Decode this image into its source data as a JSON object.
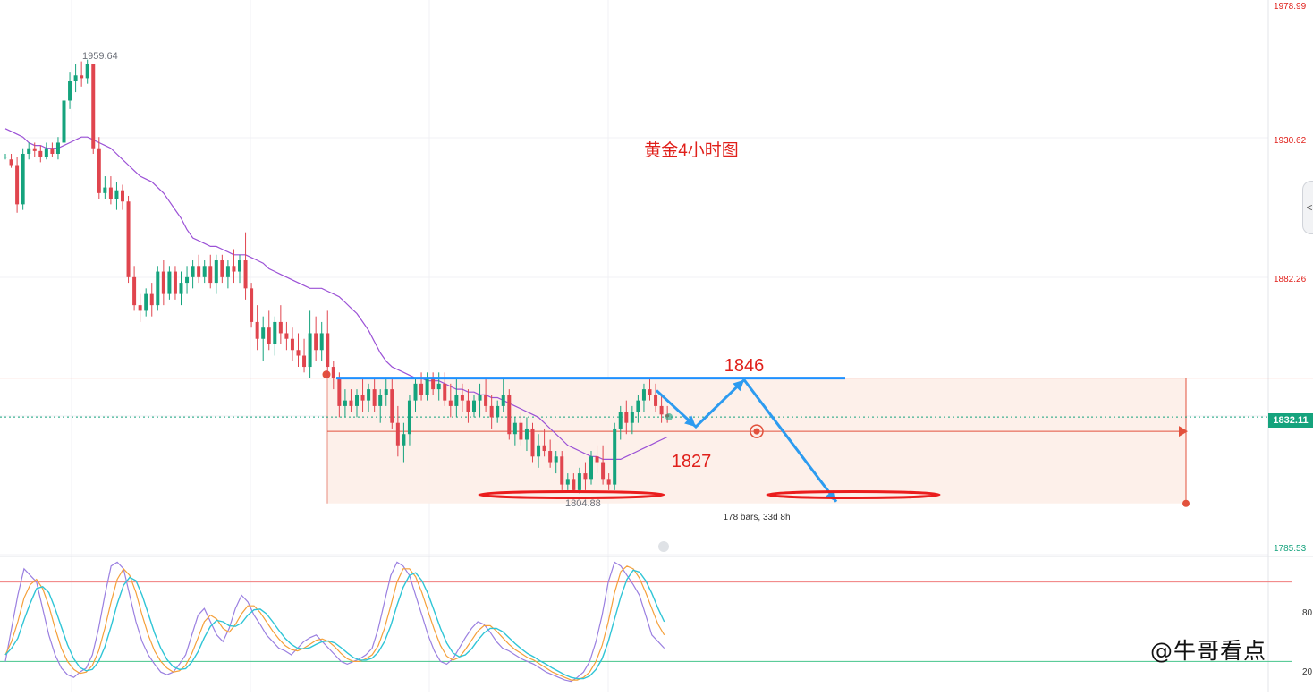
{
  "watermark": "@牛哥看点",
  "handle_glyph": "<",
  "chart_data": {
    "type": "candlestick",
    "title": "黄金4小时图",
    "price_axis": {
      "ticks": [
        1978.99,
        1930.62,
        1882.26,
        1785.53
      ],
      "tick_labels": [
        "1978.99",
        "1930.62",
        "1882.26",
        "1785.53"
      ],
      "ylim": [
        1785.53,
        1978.99
      ],
      "current_price": 1832.11,
      "current_price_label": "1832.11"
    },
    "markers": {
      "high_label": "1959.64",
      "low_label": "1804.88"
    },
    "candles": [
      [
        1925,
        1926,
        1924,
        1925
      ],
      [
        1924,
        1926,
        1921,
        1922
      ],
      [
        1922,
        1925,
        1905,
        1908
      ],
      [
        1908,
        1928,
        1906,
        1926
      ],
      [
        1926,
        1930,
        1924,
        1928
      ],
      [
        1928,
        1930,
        1925,
        1927
      ],
      [
        1927,
        1929,
        1923,
        1925
      ],
      [
        1925,
        1930,
        1924,
        1928
      ],
      [
        1928,
        1930,
        1925,
        1926
      ],
      [
        1926,
        1932,
        1924,
        1930
      ],
      [
        1930,
        1946,
        1928,
        1945
      ],
      [
        1945,
        1955,
        1942,
        1952
      ],
      [
        1952,
        1958,
        1948,
        1954
      ],
      [
        1954,
        1959,
        1950,
        1953
      ],
      [
        1953,
        1959.64,
        1951,
        1958
      ],
      [
        1958,
        1958,
        1926,
        1928
      ],
      [
        1928,
        1932,
        1910,
        1912
      ],
      [
        1912,
        1918,
        1910,
        1914
      ],
      [
        1914,
        1918,
        1908,
        1910
      ],
      [
        1910,
        1916,
        1906,
        1913
      ],
      [
        1913,
        1915,
        1906,
        1909
      ],
      [
        1909,
        1911,
        1880,
        1882
      ],
      [
        1882,
        1886,
        1870,
        1872
      ],
      [
        1872,
        1876,
        1866,
        1870
      ],
      [
        1870,
        1878,
        1868,
        1876
      ],
      [
        1876,
        1880,
        1868,
        1872
      ],
      [
        1872,
        1886,
        1870,
        1884
      ],
      [
        1884,
        1888,
        1872,
        1876
      ],
      [
        1876,
        1886,
        1874,
        1884
      ],
      [
        1884,
        1886,
        1874,
        1876
      ],
      [
        1876,
        1884,
        1872,
        1880
      ],
      [
        1880,
        1886,
        1876,
        1882
      ],
      [
        1882,
        1888,
        1878,
        1886
      ],
      [
        1886,
        1890,
        1880,
        1882
      ],
      [
        1882,
        1888,
        1880,
        1886
      ],
      [
        1886,
        1890,
        1878,
        1880
      ],
      [
        1880,
        1890,
        1876,
        1888
      ],
      [
        1888,
        1890,
        1880,
        1882
      ],
      [
        1882,
        1888,
        1878,
        1886
      ],
      [
        1886,
        1892,
        1880,
        1884
      ],
      [
        1884,
        1890,
        1880,
        1888
      ],
      [
        1888,
        1898,
        1874,
        1878
      ],
      [
        1878,
        1880,
        1864,
        1866
      ],
      [
        1866,
        1872,
        1856,
        1860
      ],
      [
        1860,
        1868,
        1852,
        1864
      ],
      [
        1864,
        1870,
        1856,
        1858
      ],
      [
        1858,
        1868,
        1854,
        1866
      ],
      [
        1866,
        1872,
        1858,
        1862
      ],
      [
        1862,
        1866,
        1856,
        1860
      ],
      [
        1860,
        1864,
        1852,
        1856
      ],
      [
        1856,
        1862,
        1850,
        1854
      ],
      [
        1854,
        1860,
        1848,
        1850
      ],
      [
        1850,
        1870,
        1846,
        1862
      ],
      [
        1862,
        1868,
        1852,
        1856
      ],
      [
        1856,
        1866,
        1852,
        1862
      ],
      [
        1862,
        1870,
        1846,
        1850
      ],
      [
        1850,
        1852,
        1842,
        1846
      ],
      [
        1846,
        1848,
        1832,
        1836
      ],
      [
        1836,
        1842,
        1832,
        1838
      ],
      [
        1838,
        1842,
        1834,
        1836
      ],
      [
        1836,
        1842,
        1832,
        1840
      ],
      [
        1840,
        1846,
        1834,
        1838
      ],
      [
        1838,
        1844,
        1834,
        1842
      ],
      [
        1842,
        1846,
        1834,
        1836
      ],
      [
        1836,
        1842,
        1830,
        1840
      ],
      [
        1840,
        1846,
        1836,
        1842
      ],
      [
        1842,
        1846,
        1828,
        1830
      ],
      [
        1830,
        1836,
        1818,
        1822
      ],
      [
        1822,
        1830,
        1816,
        1826
      ],
      [
        1826,
        1840,
        1822,
        1838
      ],
      [
        1838,
        1846,
        1834,
        1844
      ],
      [
        1844,
        1848,
        1838,
        1840
      ],
      [
        1840,
        1848,
        1838,
        1846
      ],
      [
        1846,
        1848,
        1840,
        1842
      ],
      [
        1842,
        1848,
        1838,
        1844
      ],
      [
        1844,
        1848,
        1836,
        1838
      ],
      [
        1838,
        1844,
        1832,
        1836
      ],
      [
        1836,
        1846,
        1832,
        1840
      ],
      [
        1840,
        1844,
        1834,
        1838
      ],
      [
        1838,
        1842,
        1830,
        1834
      ],
      [
        1834,
        1840,
        1832,
        1838
      ],
      [
        1838,
        1844,
        1832,
        1840
      ],
      [
        1840,
        1846,
        1834,
        1836
      ],
      [
        1836,
        1840,
        1828,
        1832
      ],
      [
        1832,
        1838,
        1830,
        1836
      ],
      [
        1836,
        1846,
        1834,
        1840
      ],
      [
        1840,
        1842,
        1824,
        1826
      ],
      [
        1826,
        1832,
        1822,
        1830
      ],
      [
        1830,
        1834,
        1822,
        1824
      ],
      [
        1824,
        1832,
        1820,
        1828
      ],
      [
        1828,
        1830,
        1816,
        1818
      ],
      [
        1818,
        1826,
        1814,
        1822
      ],
      [
        1822,
        1828,
        1818,
        1820
      ],
      [
        1820,
        1824,
        1814,
        1816
      ],
      [
        1816,
        1820,
        1812,
        1818
      ],
      [
        1818,
        1820,
        1806,
        1808
      ],
      [
        1808,
        1812,
        1806,
        1810
      ],
      [
        1810,
        1812,
        1805,
        1806
      ],
      [
        1806,
        1814,
        1804.88,
        1812
      ],
      [
        1812,
        1816,
        1806,
        1810
      ],
      [
        1810,
        1820,
        1808,
        1818
      ],
      [
        1818,
        1822,
        1812,
        1816
      ],
      [
        1816,
        1822,
        1808,
        1810
      ],
      [
        1810,
        1812,
        1806,
        1808
      ],
      [
        1808,
        1830,
        1806,
        1828
      ],
      [
        1828,
        1836,
        1824,
        1834
      ],
      [
        1834,
        1838,
        1826,
        1830
      ],
      [
        1830,
        1836,
        1826,
        1834
      ],
      [
        1834,
        1840,
        1830,
        1838
      ],
      [
        1838,
        1844,
        1834,
        1842
      ],
      [
        1842,
        1846,
        1838,
        1840
      ],
      [
        1840,
        1844,
        1834,
        1836
      ],
      [
        1836,
        1840,
        1830,
        1833
      ],
      [
        1833,
        1836,
        1830,
        1832.11
      ]
    ],
    "moving_average": [
      1935,
      1934,
      1933,
      1932,
      1930,
      1929,
      1929,
      1928,
      1928,
      1928,
      1929,
      1930,
      1931,
      1932,
      1932,
      1931,
      1930,
      1929,
      1928,
      1926,
      1924,
      1922,
      1920,
      1918,
      1917,
      1916,
      1914,
      1912,
      1909,
      1906,
      1903,
      1899,
      1896,
      1895,
      1894,
      1893,
      1893,
      1892,
      1891,
      1890,
      1890,
      1890,
      1889,
      1888,
      1887,
      1885,
      1884,
      1883,
      1882,
      1881,
      1880,
      1879,
      1878,
      1878,
      1878,
      1877,
      1876,
      1875,
      1873,
      1871,
      1869,
      1866,
      1863,
      1859,
      1855,
      1852,
      1850,
      1849,
      1848,
      1847,
      1846,
      1846,
      1845,
      1845,
      1845,
      1844,
      1843,
      1842,
      1842,
      1841,
      1841,
      1840,
      1840,
      1839,
      1839,
      1838,
      1837,
      1836,
      1835,
      1834,
      1833,
      1832,
      1830,
      1828,
      1826,
      1824,
      1822,
      1821,
      1820,
      1819,
      1818,
      1818,
      1817,
      1817,
      1817,
      1817,
      1818,
      1819,
      1820,
      1821,
      1822,
      1823,
      1824,
      1825
    ],
    "range_box": {
      "top_price": 1846,
      "bottom_price": 1807,
      "mid_price": 1827,
      "stats_label": "178 bars, 33d 8h"
    },
    "annotations": {
      "resistance_label": "1846",
      "support_label": "1827",
      "zigzag_prices": [
        1832,
        1827,
        1846,
        1807
      ]
    },
    "oscillator": {
      "levels": [
        80,
        20
      ],
      "level_labels": [
        "80",
        "20"
      ],
      "k_values": [
        20,
        45,
        70,
        90,
        85,
        80,
        60,
        40,
        25,
        15,
        10,
        8,
        12,
        15,
        25,
        45,
        70,
        92,
        95,
        90,
        70,
        50,
        35,
        25,
        18,
        12,
        10,
        12,
        18,
        25,
        40,
        55,
        60,
        50,
        40,
        35,
        45,
        60,
        70,
        65,
        55,
        48,
        40,
        35,
        30,
        28,
        25,
        30,
        35,
        38,
        40,
        35,
        30,
        25,
        20,
        18,
        20,
        22,
        25,
        30,
        45,
        65,
        85,
        95,
        92,
        85,
        70,
        55,
        40,
        28,
        20,
        18,
        22,
        30,
        38,
        45,
        50,
        48,
        42,
        35,
        30,
        28,
        25,
        22,
        20,
        18,
        15,
        12,
        10,
        8,
        6,
        5,
        8,
        12,
        20,
        35,
        55,
        80,
        95,
        92,
        85,
        78,
        70,
        55,
        40,
        35,
        30
      ],
      "d_values": [
        25,
        35,
        50,
        68,
        78,
        82,
        75,
        62,
        45,
        30,
        20,
        14,
        11,
        12,
        17,
        28,
        45,
        65,
        82,
        90,
        85,
        72,
        55,
        40,
        28,
        20,
        15,
        12,
        13,
        17,
        26,
        38,
        50,
        55,
        52,
        45,
        42,
        48,
        56,
        62,
        62,
        57,
        50,
        43,
        37,
        32,
        29,
        28,
        30,
        33,
        36,
        37,
        35,
        31,
        26,
        22,
        20,
        20,
        22,
        25,
        32,
        45,
        62,
        80,
        90,
        90,
        84,
        72,
        58,
        44,
        32,
        24,
        21,
        23,
        29,
        36,
        43,
        47,
        47,
        43,
        38,
        33,
        29,
        26,
        23,
        21,
        18,
        15,
        12,
        10,
        8,
        6,
        6,
        8,
        12,
        20,
        32,
        50,
        72,
        88,
        92,
        90,
        83,
        72,
        60,
        48,
        40
      ]
    }
  }
}
